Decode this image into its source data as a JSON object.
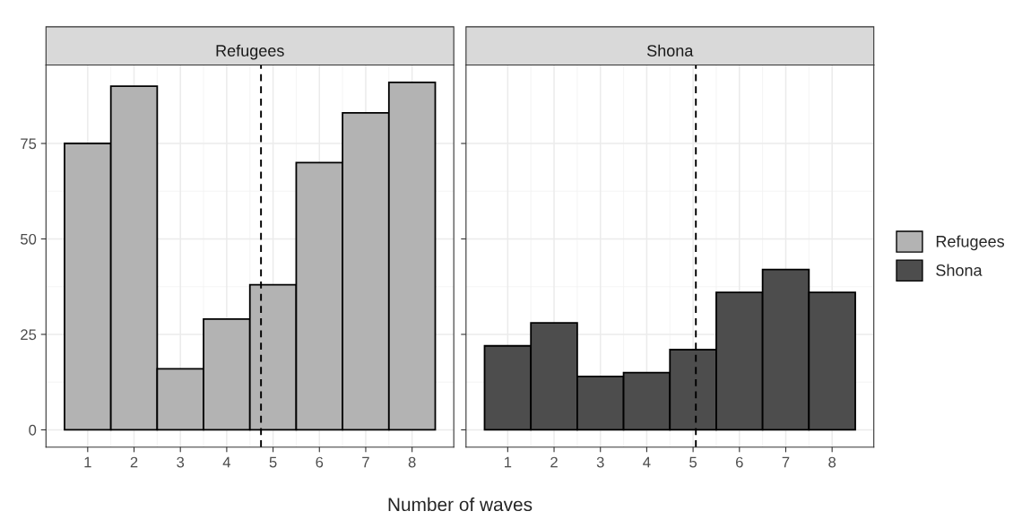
{
  "chart_data": [
    {
      "type": "bar",
      "title": "Refugees",
      "xlabel": "Number of waves",
      "x": [
        1,
        2,
        3,
        4,
        5,
        6,
        7,
        8
      ],
      "series": [
        {
          "name": "Refugees",
          "color": "#b3b3b3",
          "values": [
            75,
            90,
            16,
            29,
            38,
            70,
            83,
            91
          ]
        }
      ],
      "xlim": [
        0.1,
        8.9
      ],
      "xticks": [
        1,
        2,
        3,
        4,
        5,
        6,
        7,
        8
      ],
      "ylim": [
        -4.55,
        95.55
      ],
      "yticks": [
        0,
        25,
        50,
        75
      ],
      "ref_lines": [
        {
          "axis": "x",
          "value": 4.74,
          "line_style": "dashed",
          "color": "#000000"
        }
      ],
      "grid": true,
      "legend": "right"
    },
    {
      "type": "bar",
      "title": "Shona",
      "x": [
        1,
        2,
        3,
        4,
        5,
        6,
        7,
        8
      ],
      "series": [
        {
          "name": "Shona",
          "color": "#4d4d4d",
          "values": [
            22,
            28,
            14,
            15,
            21,
            36,
            42,
            36
          ]
        }
      ],
      "xlim": [
        0.1,
        8.9
      ],
      "xticks": [
        1,
        2,
        3,
        4,
        5,
        6,
        7,
        8
      ],
      "ylim": [
        -4.55,
        95.55
      ],
      "yticks": [
        0,
        25,
        50,
        75
      ],
      "ref_lines": [
        {
          "axis": "x",
          "value": 5.06,
          "line_style": "dashed",
          "color": "#000000"
        }
      ],
      "grid": true,
      "legend": "right",
      "tick_labels": "x"
    }
  ]
}
